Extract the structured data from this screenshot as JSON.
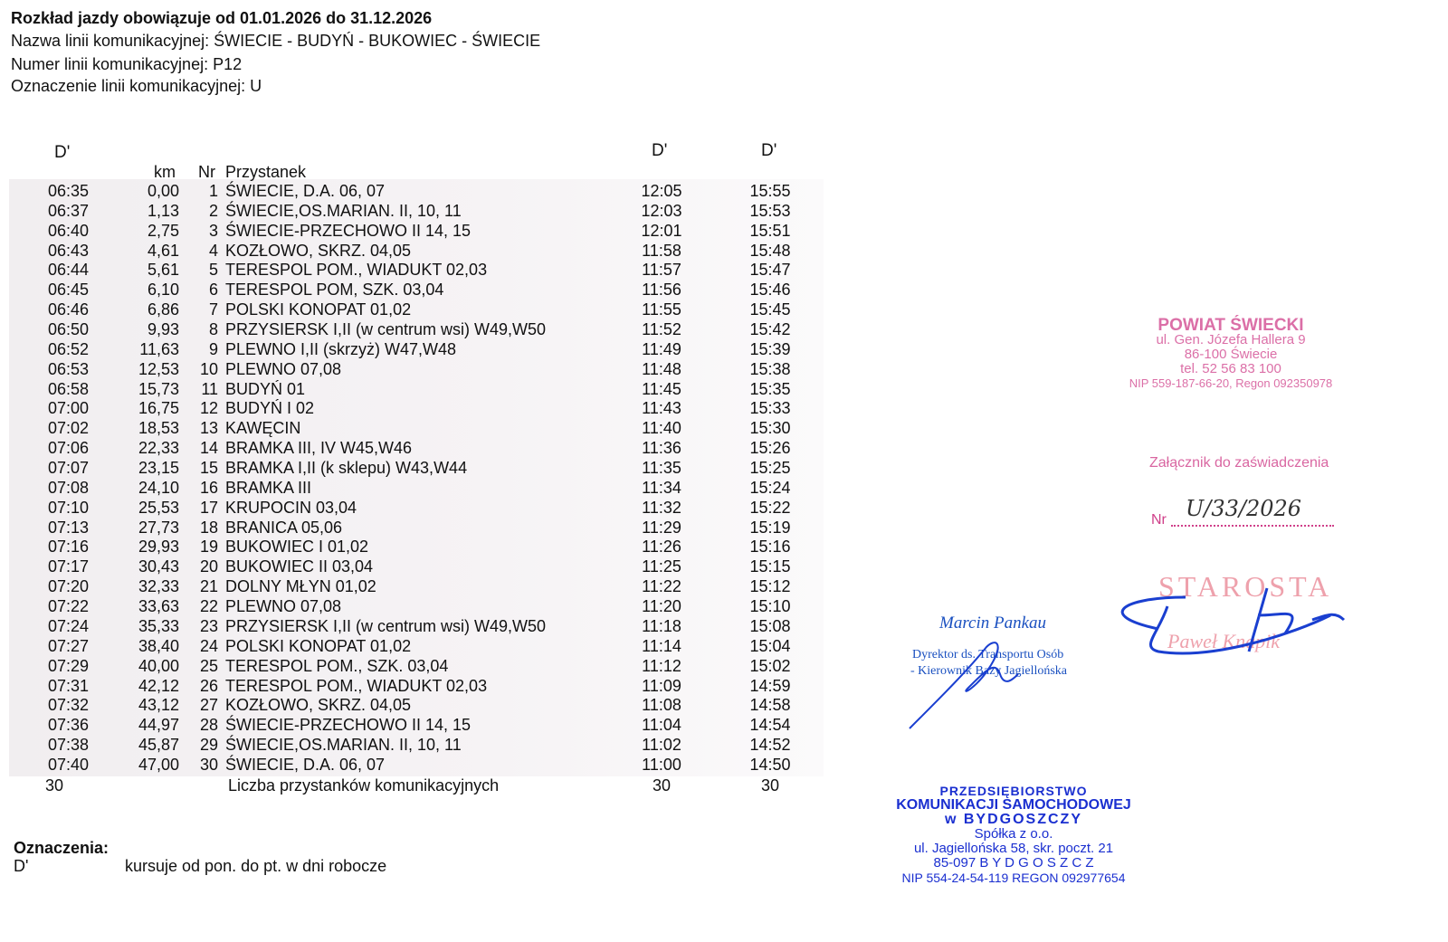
{
  "header": {
    "validity": "Rozkład jazdy obowiązuje od  01.01.2026 do 31.12.2026",
    "line_name": "Nazwa linii komunikacyjnej: ŚWIECIE - BUDYŃ - BUKOWIEC - ŚWIECIE",
    "line_number": "Numer linii komunikacyjnej: P12",
    "line_mark": "Oznaczenie linii komunikacyjnej: U"
  },
  "table": {
    "course_marks": [
      "D'",
      "D'",
      "D'"
    ],
    "columns": [
      "km",
      "Nr",
      "Przystanek"
    ],
    "rows": [
      [
        "06:35",
        "0,00",
        "1",
        "ŚWIECIE, D.A. 06, 07",
        "12:05",
        "15:55"
      ],
      [
        "06:37",
        "1,13",
        "2",
        "ŚWIECIE,OS.MARIAN. II, 10, 11",
        "12:03",
        "15:53"
      ],
      [
        "06:40",
        "2,75",
        "3",
        "ŚWIECIE-PRZECHOWO II 14, 15",
        "12:01",
        "15:51"
      ],
      [
        "06:43",
        "4,61",
        "4",
        "KOZŁOWO, SKRZ. 04,05",
        "11:58",
        "15:48"
      ],
      [
        "06:44",
        "5,61",
        "5",
        "TERESPOL POM., WIADUKT 02,03",
        "11:57",
        "15:47"
      ],
      [
        "06:45",
        "6,10",
        "6",
        "TERESPOL POM, SZK. 03,04",
        "11:56",
        "15:46"
      ],
      [
        "06:46",
        "6,86",
        "7",
        "POLSKI KONOPAT 01,02",
        "11:55",
        "15:45"
      ],
      [
        "06:50",
        "9,93",
        "8",
        "PRZYSIERSK I,II (w centrum wsi) W49,W50",
        "11:52",
        "15:42"
      ],
      [
        "06:52",
        "11,63",
        "9",
        "PLEWNO I,II (skrzyż) W47,W48",
        "11:49",
        "15:39"
      ],
      [
        "06:53",
        "12,53",
        "10",
        "PLEWNO 07,08",
        "11:48",
        "15:38"
      ],
      [
        "06:58",
        "15,73",
        "11",
        "BUDYŃ 01",
        "11:45",
        "15:35"
      ],
      [
        "07:00",
        "16,75",
        "12",
        "BUDYŃ I 02",
        "11:43",
        "15:33"
      ],
      [
        "07:02",
        "18,53",
        "13",
        "KAWĘCIN",
        "11:40",
        "15:30"
      ],
      [
        "07:06",
        "22,33",
        "14",
        "BRAMKA III, IV W45,W46",
        "11:36",
        "15:26"
      ],
      [
        "07:07",
        "23,15",
        "15",
        "BRAMKA I,II (k sklepu) W43,W44",
        "11:35",
        "15:25"
      ],
      [
        "07:08",
        "24,10",
        "16",
        "BRAMKA III",
        "11:34",
        "15:24"
      ],
      [
        "07:10",
        "25,53",
        "17",
        "KRUPOCIN 03,04",
        "11:32",
        "15:22"
      ],
      [
        "07:13",
        "27,73",
        "18",
        "BRANICA 05,06",
        "11:29",
        "15:19"
      ],
      [
        "07:16",
        "29,93",
        "19",
        "BUKOWIEC I 01,02",
        "11:26",
        "15:16"
      ],
      [
        "07:17",
        "30,43",
        "20",
        "BUKOWIEC II 03,04",
        "11:25",
        "15:15"
      ],
      [
        "07:20",
        "32,33",
        "21",
        "DOLNY MŁYN 01,02",
        "11:22",
        "15:12"
      ],
      [
        "07:22",
        "33,63",
        "22",
        "PLEWNO 07,08",
        "11:20",
        "15:10"
      ],
      [
        "07:24",
        "35,33",
        "23",
        "PRZYSIERSK I,II (w centrum wsi) W49,W50",
        "11:18",
        "15:08"
      ],
      [
        "07:27",
        "38,40",
        "24",
        "POLSKI KONOPAT 01,02",
        "11:14",
        "15:04"
      ],
      [
        "07:29",
        "40,00",
        "25",
        "TERESPOL POM., SZK. 03,04",
        "11:12",
        "15:02"
      ],
      [
        "07:31",
        "42,12",
        "26",
        "TERESPOL POM., WIADUKT 02,03",
        "11:09",
        "14:59"
      ],
      [
        "07:32",
        "43,12",
        "27",
        "KOZŁOWO, SKRZ. 04,05",
        "11:08",
        "14:58"
      ],
      [
        "07:36",
        "44,97",
        "28",
        "ŚWIECIE-PRZECHOWO II 14, 15",
        "11:04",
        "14:54"
      ],
      [
        "07:38",
        "45,87",
        "29",
        "ŚWIECIE,OS.MARIAN. II, 10, 11",
        "11:02",
        "14:52"
      ],
      [
        "07:40",
        "47,00",
        "30",
        "ŚWIECIE, D.A. 06, 07",
        "11:00",
        "14:50"
      ]
    ],
    "footer": {
      "count1": "30",
      "label": "Liczba przystanków komunikacyjnych",
      "count2": "30",
      "count3": "30"
    }
  },
  "legend": {
    "title": "Oznaczenia:",
    "mark": "D'",
    "description": "kursuje od pon. do pt. w dni robocze"
  },
  "stamp_powiat": {
    "lines": [
      "POWIAT ŚWIECKI",
      "ul. Gen. Józefa Hallera 9",
      "86-100 Świecie",
      "tel. 52 56 83 100",
      "NIP 559-187-66-20, Regon 092350978"
    ]
  },
  "attachment": {
    "label": "Załącznik do zaświadczenia",
    "nr_label": "Nr",
    "nr_value": "U/33/2026"
  },
  "starosta": {
    "title": "STAROSTA",
    "name": "Paweł Knapik"
  },
  "director": {
    "name": "Marcin Pankau",
    "role1": "Dyrektor ds. Transportu Osób",
    "role2": "- Kierownik Bazy Jagiellońska"
  },
  "stamp_pks": {
    "lines": [
      "PRZEDSIĘBIORSTWO",
      "KOMUNIKACJI SAMOCHODOWEJ",
      "w BYDGOSZCZY",
      "Spółka z o.o.",
      "ul. Jagiellońska 58, skr. poczt. 21",
      "85-097 B Y D G O S Z C Z",
      "NIP 554-24-54-119  REGON 092977654"
    ]
  },
  "colors": {
    "stamp_red": "#d0408a",
    "stamp_blue": "#1a2fd0",
    "shade": "#f1eef0"
  }
}
